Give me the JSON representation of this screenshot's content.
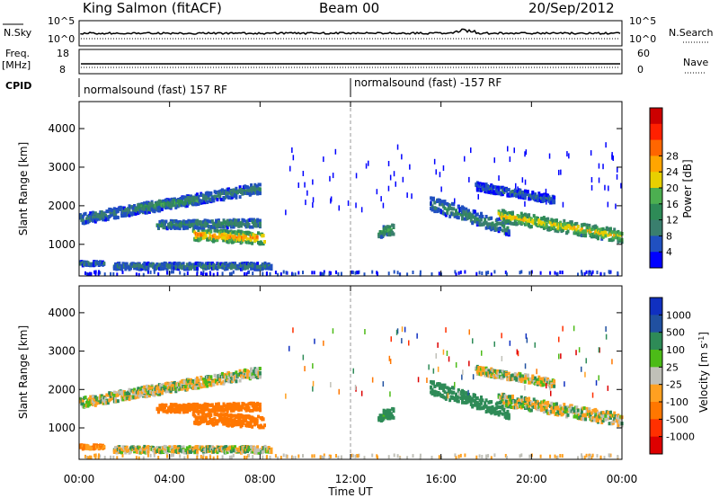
{
  "header": {
    "station": "King Salmon (fitACF)",
    "beam": "Beam 00",
    "date": "20/Sep/2012"
  },
  "strips": {
    "nsky_label": "N.Sky",
    "nsky_tick_top": "10^5",
    "nsky_tick_bottom": "10^0",
    "nsearch_label": "N.Search",
    "nsearch_tick_top": "10^5",
    "nsearch_tick_bottom": "10^0",
    "freq_label": "Freq.",
    "freq_unit": "[MHz]",
    "freq_tick_top": "18",
    "freq_tick_bottom": "8",
    "nave_label": "Nave",
    "nave_tick_top": "60",
    "nave_tick_bottom": "0",
    "cpid_label": "CPID",
    "cpid_segments": [
      {
        "label": "normalsound (fast) 157 RF",
        "start_hour": 0
      },
      {
        "label": "normalsound (fast) -157 RF",
        "start_hour": 12
      }
    ]
  },
  "colors": {
    "power": [
      "#0000ff",
      "#2050c0",
      "#3a7f6e",
      "#2e8b57",
      "#4caf50",
      "#e8d000",
      "#ffa500",
      "#ff6600",
      "#ff2000",
      "#cc0000"
    ],
    "velocity": [
      "#1030c0",
      "#2050a0",
      "#2e8b57",
      "#4cbb17",
      "#c0c0b8",
      "#ffa020",
      "#ff7700",
      "#ff3000",
      "#dd0000"
    ],
    "frame": "#000000",
    "ground_scatter": "#c0c0b8"
  },
  "chart_data": [
    {
      "type": "heatmap",
      "panel": "power",
      "xlabel": "Time UT",
      "ylabel": "Slant Range [km]",
      "xlim": [
        0,
        24
      ],
      "ylim": [
        180,
        4700
      ],
      "x_ticks": [
        "00:00",
        "04:00",
        "08:00",
        "12:00",
        "16:00",
        "20:00",
        "00:00"
      ],
      "y_ticks": [
        1000,
        2000,
        3000,
        4000
      ],
      "colorbar_label": "Power [dB]",
      "colorbar_ticks": [
        "4",
        "8",
        "12",
        "16",
        "20",
        "24",
        "28"
      ],
      "colorbar_range": [
        0,
        30
      ],
      "scatter_bands": [
        {
          "t_start": 0.0,
          "t_end": 8.0,
          "r_start": 1650,
          "r_end": 2450,
          "width": 260,
          "power": 8
        },
        {
          "t_start": 2.5,
          "t_end": 5.2,
          "r_start": 1950,
          "r_end": 2150,
          "width": 200,
          "power": 12
        },
        {
          "t_start": 5.0,
          "t_end": 8.2,
          "r_start": 1250,
          "r_end": 1150,
          "width": 300,
          "power": 22
        },
        {
          "t_start": 3.4,
          "t_end": 8.0,
          "r_start": 1500,
          "r_end": 1550,
          "width": 200,
          "power": 10
        },
        {
          "t_start": 1.5,
          "t_end": 8.5,
          "r_start": 430,
          "r_end": 430,
          "width": 160,
          "power": 8
        },
        {
          "t_start": 0.0,
          "t_end": 1.1,
          "r_start": 500,
          "r_end": 500,
          "width": 100,
          "power": 7
        },
        {
          "t_start": 13.2,
          "t_end": 13.9,
          "r_start": 1300,
          "r_end": 1400,
          "width": 260,
          "power": 14
        },
        {
          "t_start": 15.5,
          "t_end": 19.0,
          "r_start": 2050,
          "r_end": 1400,
          "width": 350,
          "power": 9
        },
        {
          "t_start": 18.5,
          "t_end": 24.0,
          "r_start": 1750,
          "r_end": 1200,
          "width": 320,
          "power": 18
        },
        {
          "t_start": 17.5,
          "t_end": 21.0,
          "r_start": 2500,
          "r_end": 2150,
          "width": 200,
          "power": 6
        }
      ]
    },
    {
      "type": "heatmap",
      "panel": "velocity",
      "xlabel": "Time UT",
      "ylabel": "Slant Range [km]",
      "xlim": [
        0,
        24
      ],
      "ylim": [
        180,
        4700
      ],
      "x_ticks": [
        "00:00",
        "04:00",
        "08:00",
        "12:00",
        "16:00",
        "20:00",
        "00:00"
      ],
      "y_ticks": [
        1000,
        2000,
        3000,
        4000
      ],
      "colorbar_label": "Velocity [m s^-1]",
      "colorbar_ticks": [
        "1000",
        "500",
        "100",
        "25",
        "-25",
        "-100",
        "-500",
        "-1000"
      ],
      "colorbar_range": [
        -1000,
        1000
      ],
      "scatter_bands": [
        {
          "t_start": 0.0,
          "t_end": 8.0,
          "r_start": 1650,
          "r_end": 2450,
          "width": 260,
          "velocity": 0
        },
        {
          "t_start": 2.5,
          "t_end": 5.2,
          "r_start": 1950,
          "r_end": 2150,
          "width": 200,
          "velocity": 0
        },
        {
          "t_start": 5.0,
          "t_end": 8.2,
          "r_start": 1250,
          "r_end": 1150,
          "width": 300,
          "velocity": -300
        },
        {
          "t_start": 3.4,
          "t_end": 8.0,
          "r_start": 1500,
          "r_end": 1550,
          "width": 200,
          "velocity": -200
        },
        {
          "t_start": 1.5,
          "t_end": 8.5,
          "r_start": 430,
          "r_end": 430,
          "width": 160,
          "velocity": 0
        },
        {
          "t_start": 0.0,
          "t_end": 1.1,
          "r_start": 500,
          "r_end": 500,
          "width": 100,
          "velocity": -150
        },
        {
          "t_start": 13.2,
          "t_end": 13.9,
          "r_start": 1300,
          "r_end": 1400,
          "width": 260,
          "velocity": 150
        },
        {
          "t_start": 15.5,
          "t_end": 19.0,
          "r_start": 2050,
          "r_end": 1400,
          "width": 350,
          "velocity": 200
        },
        {
          "t_start": 18.5,
          "t_end": 24.0,
          "r_start": 1750,
          "r_end": 1200,
          "width": 320,
          "velocity": 0
        },
        {
          "t_start": 17.5,
          "t_end": 21.0,
          "r_start": 2500,
          "r_end": 2150,
          "width": 200,
          "velocity": 0
        }
      ]
    }
  ]
}
